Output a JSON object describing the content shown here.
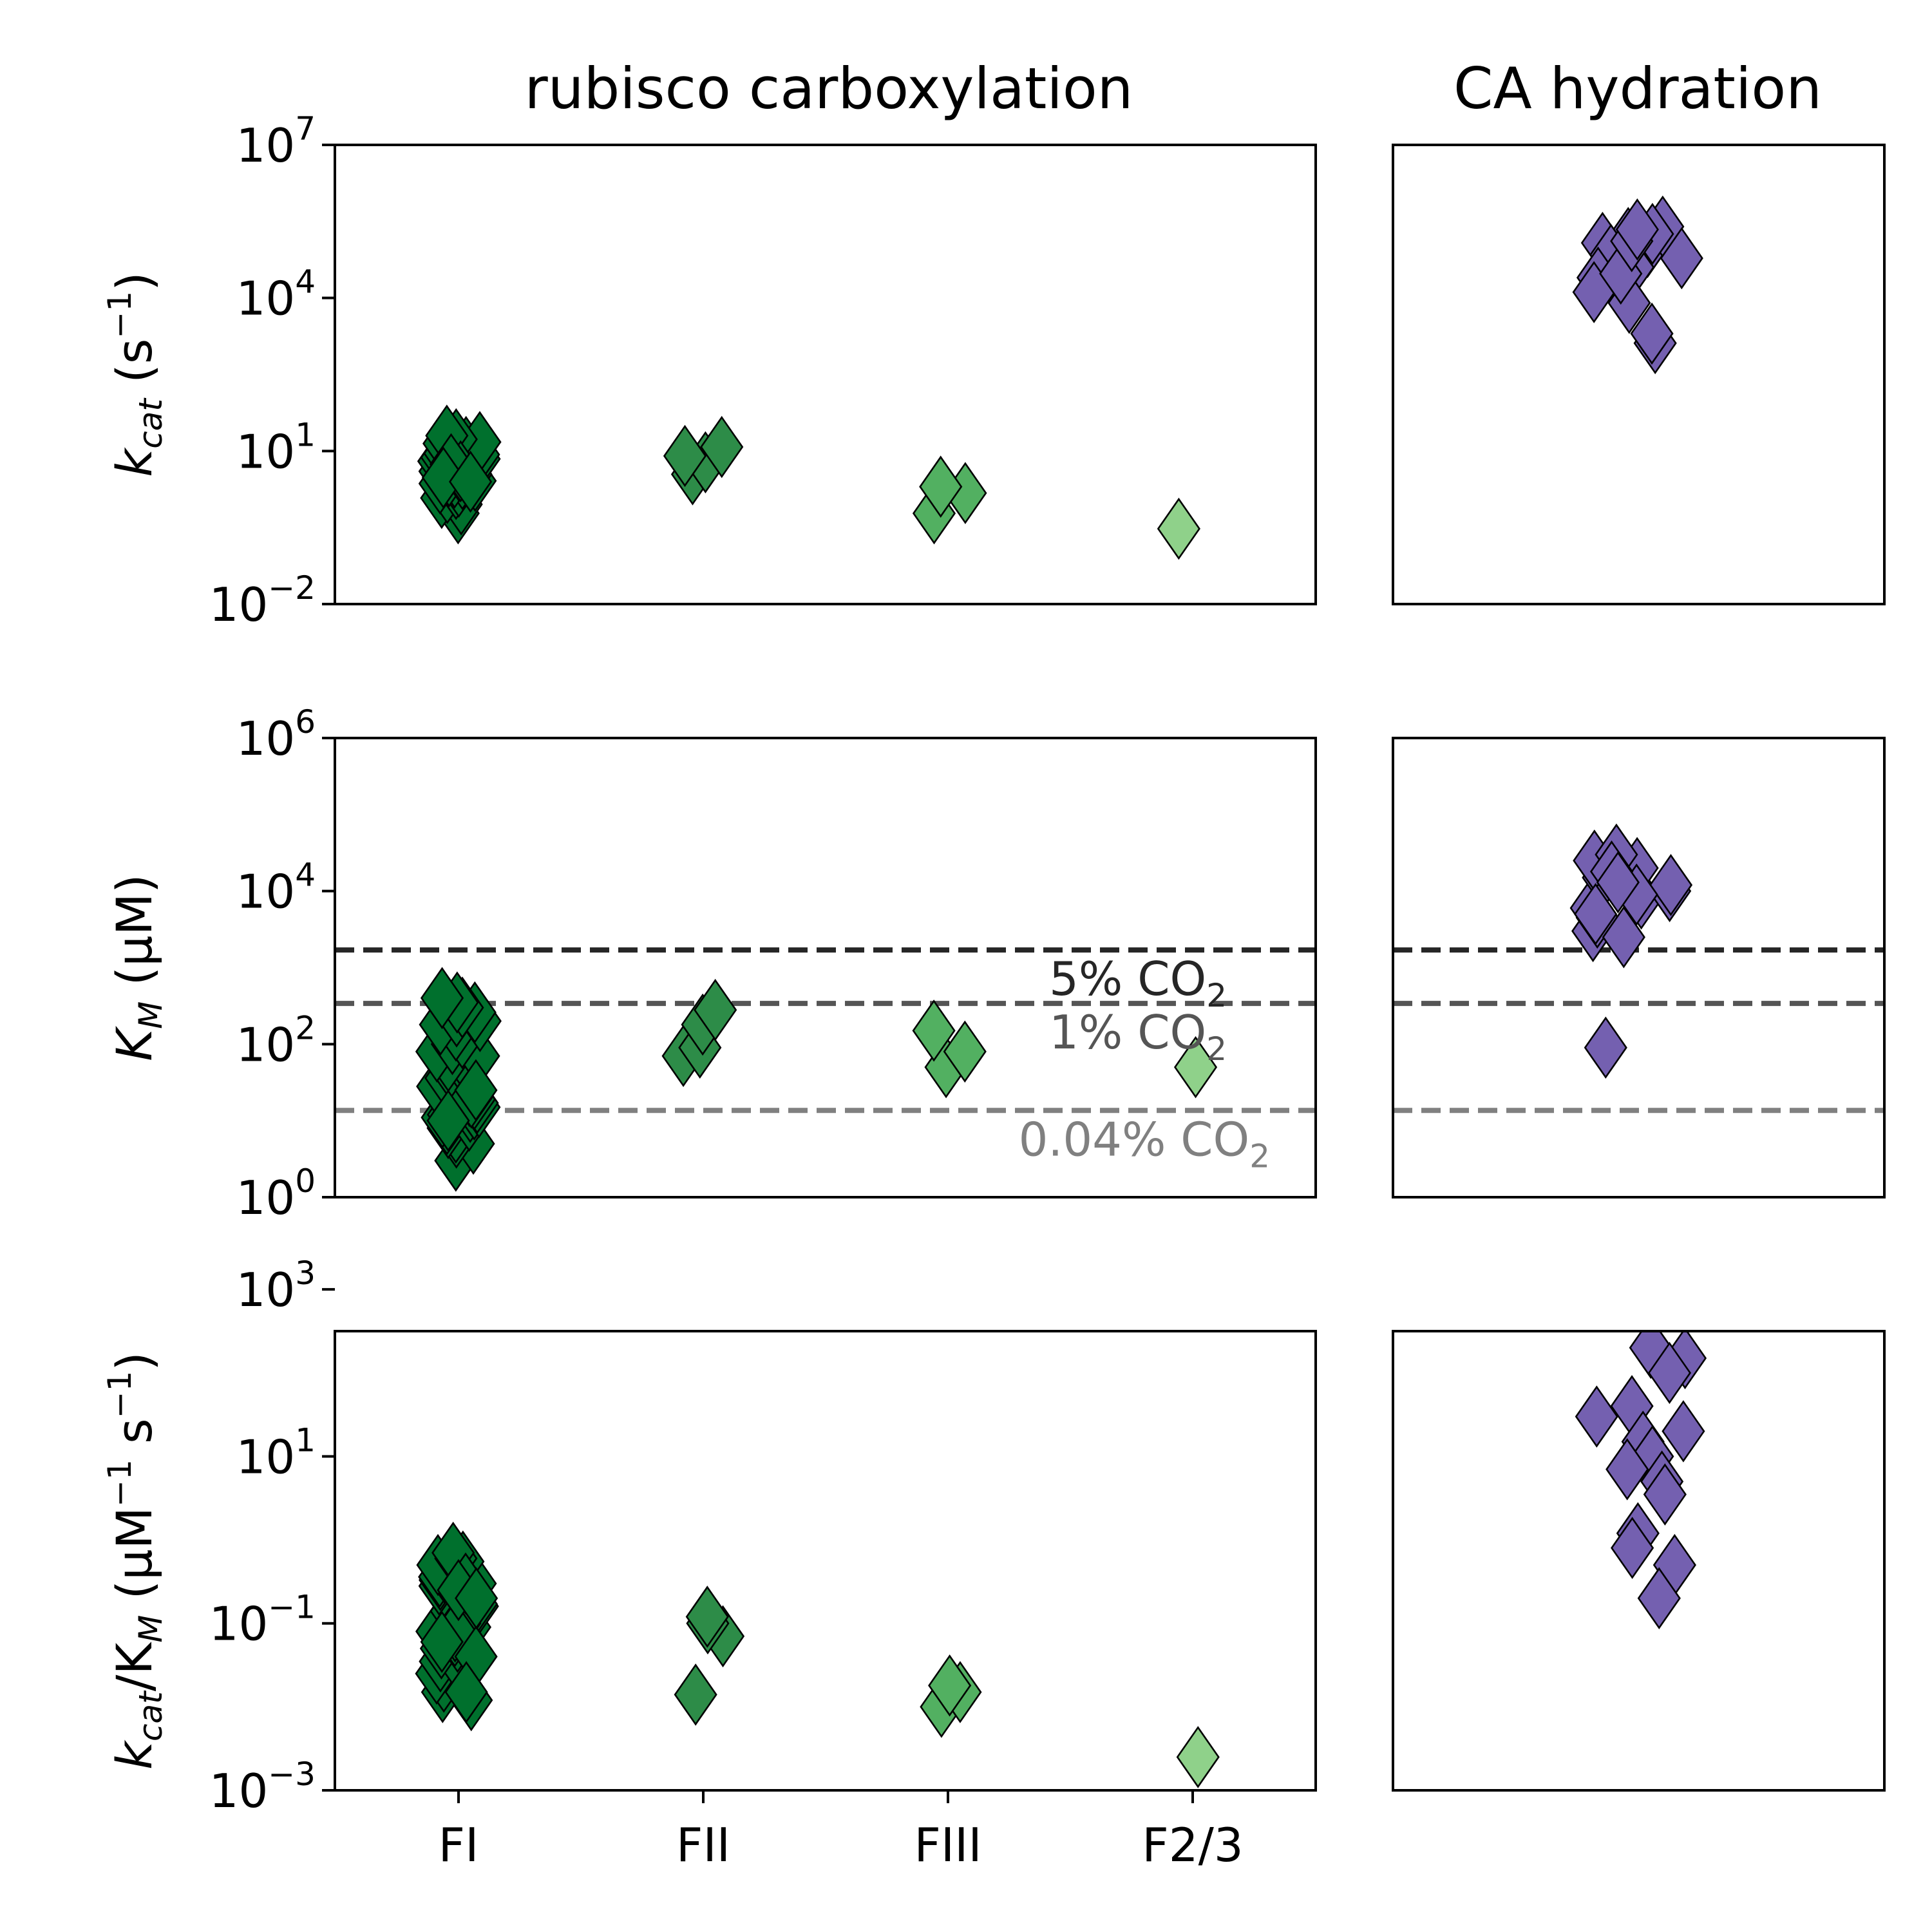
{
  "chart_data": {
    "type": "scatter",
    "columns": [
      {
        "title": "rubisco carboxylation",
        "categories": [
          "FI",
          "FII",
          "FIII",
          "F2/3"
        ]
      },
      {
        "title": "CA hydration"
      }
    ],
    "colors": {
      "FI": "#00702d",
      "FII": "#2d8c48",
      "FIII": "#52b061",
      "F2/3": "#8fd18a",
      "CA": "#7460b0",
      "line_5pct": "#262626",
      "line_1pct": "#555555",
      "line_004pct": "#808080"
    },
    "rows": [
      {
        "ylabel_main": "k",
        "ylabel_sub": "cat",
        "ylabel_rest": " (s",
        "ylabel_sup": "−1",
        "ylabel_close": ")",
        "scale": "log",
        "ylim_exp": [
          -2,
          7
        ],
        "ticks": [
          {
            "base": "10",
            "exp": "−2",
            "value": -2
          },
          {
            "base": "10",
            "exp": "1",
            "value": 1
          },
          {
            "base": "10",
            "exp": "4",
            "value": 4
          },
          {
            "base": "10",
            "exp": "7",
            "value": 7
          }
        ],
        "rubisco": [
          {
            "group": "FI",
            "values": [
              0.6,
              0.9,
              1.2,
              1.5,
              1.8,
              2.0,
              2.3,
              2.6,
              2.8,
              3.0,
              3.2,
              3.5,
              3.8,
              4.0,
              4.2,
              4.5,
              4.8,
              5.0,
              5.3,
              5.6,
              6.0,
              6.3,
              6.6,
              7.0,
              7.5,
              8.0,
              8.5,
              9.0,
              10.0,
              11.0,
              12.0,
              13.0,
              14.0,
              15.0,
              17.0,
              20.0,
              4.0,
              5.5,
              3.0,
              2.5
            ]
          },
          {
            "group": "FII",
            "values": [
              3.5,
              6.0,
              8.0,
              12.0
            ]
          },
          {
            "group": "FIII",
            "values": [
              0.6,
              1.5,
              2.0
            ]
          },
          {
            "group": "F2/3",
            "values": [
              0.3
            ]
          }
        ],
        "ca": [
          100000,
          150000,
          250000,
          180000,
          120000,
          70000,
          40000,
          25000,
          13000,
          8000,
          1300,
          2000,
          60000,
          30000,
          130000,
          220000
        ]
      },
      {
        "ylabel_main": "K",
        "ylabel_sub": "M",
        "ylabel_rest": " (μM)",
        "ylabel_sup": "",
        "ylabel_close": "",
        "scale": "log",
        "ylim_exp": [
          0,
          6
        ],
        "ticks": [
          {
            "base": "10",
            "exp": "0",
            "value": 0
          },
          {
            "base": "10",
            "exp": "2",
            "value": 2
          },
          {
            "base": "10",
            "exp": "4",
            "value": 4
          },
          {
            "base": "10",
            "exp": "6",
            "value": 6
          }
        ],
        "reference_lines": [
          {
            "value": 1700,
            "label_main": "5% CO",
            "label_sub": "2",
            "color_key": "line_5pct"
          },
          {
            "value": 340,
            "label_main": "1% CO",
            "label_sub": "2",
            "color_key": "line_1pct"
          },
          {
            "value": 13.6,
            "label_main": "0.04% CO",
            "label_sub": "2",
            "color_key": "line_004pct"
          }
        ],
        "rubisco": [
          {
            "group": "FI",
            "values": [
              3,
              5,
              6,
              7,
              8,
              9,
              10,
              11,
              12,
              13,
              14,
              15,
              17,
              19,
              21,
              23,
              25,
              28,
              30,
              33,
              36,
              40,
              45,
              50,
              60,
              70,
              80,
              100,
              120,
              150,
              180,
              200,
              230,
              260,
              300,
              350,
              400,
              20,
              25,
              10
            ]
          },
          {
            "group": "FII",
            "values": [
              70,
              90,
              180,
              280
            ]
          },
          {
            "group": "FIII",
            "values": [
              50,
              80,
              150
            ]
          },
          {
            "group": "F2/3",
            "values": [
              50
            ]
          }
        ],
        "ca": [
          90,
          3000,
          4500,
          6000,
          8000,
          10000,
          12000,
          15000,
          20000,
          25000,
          30000,
          9000,
          5000,
          2500,
          18000,
          13000
        ]
      },
      {
        "ylabel_main": "k",
        "ylabel_sub": "cat",
        "ylabel_rest": "/K",
        "ylabel_sub2": "M",
        "ylabel_rest2": " (μM",
        "ylabel_sup": "−1",
        "ylabel_rest3": " s",
        "ylabel_sup2": "−1",
        "ylabel_close": ")",
        "scale": "log",
        "ylim_exp": [
          -3,
          2.5
        ],
        "ticks": [
          {
            "base": "10",
            "exp": "−3",
            "value": -3
          },
          {
            "base": "10",
            "exp": "−1",
            "value": -1
          },
          {
            "base": "10",
            "exp": "1",
            "value": 1
          },
          {
            "base": "10",
            "exp": "3",
            "value": 3
          }
        ],
        "rubisco": [
          {
            "group": "FI",
            "values": [
              0.012,
              0.015,
              0.02,
              0.025,
              0.03,
              0.035,
              0.04,
              0.05,
              0.06,
              0.07,
              0.08,
              0.09,
              0.1,
              0.12,
              0.14,
              0.16,
              0.18,
              0.2,
              0.22,
              0.25,
              0.28,
              0.3,
              0.33,
              0.36,
              0.4,
              0.45,
              0.5,
              0.55,
              0.6,
              0.7,
              0.13,
              0.17,
              0.1,
              0.08,
              0.06,
              0.04,
              0.3,
              0.25,
              0.2,
              0.015
            ]
          },
          {
            "group": "FII",
            "values": [
              0.014,
              0.07,
              0.1,
              0.12
            ]
          },
          {
            "group": "FIII",
            "values": [
              0.01,
              0.015,
              0.018
            ]
          },
          {
            "group": "F2/3",
            "values": [
              0.0025
            ]
          }
        ],
        "ca": [
          700,
          150,
          200,
          100,
          40,
          30,
          20,
          15,
          10,
          7,
          5,
          3.5,
          1.2,
          0.8,
          0.5,
          0.2
        ]
      }
    ]
  }
}
